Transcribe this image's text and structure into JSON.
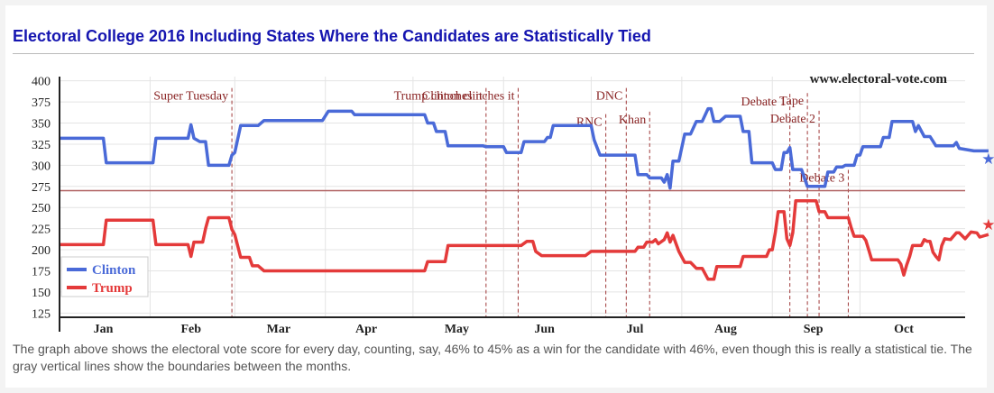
{
  "title": "Electoral College 2016 Including States Where the Candidates are Statistically Tied",
  "caption": "The graph above shows the electoral vote score for every day, counting, say, 46% to 45% as a win for the candidate with 46%, even though this is really a statistical tie. The gray vertical lines show the boundaries between the months.",
  "chart_data": {
    "type": "line",
    "watermark": "www.electoral-vote.com",
    "ylim": [
      120,
      405
    ],
    "yticks": [
      125,
      150,
      175,
      200,
      225,
      250,
      275,
      300,
      325,
      350,
      375,
      400
    ],
    "threshold": 270,
    "xlim": [
      0,
      310
    ],
    "months": [
      {
        "label": "Jan",
        "start": 0,
        "center": 15
      },
      {
        "label": "Feb",
        "start": 31,
        "center": 45
      },
      {
        "label": "Mar",
        "start": 60,
        "center": 75
      },
      {
        "label": "Apr",
        "start": 91,
        "center": 105
      },
      {
        "label": "May",
        "start": 121,
        "center": 136
      },
      {
        "label": "Jun",
        "start": 152,
        "center": 166
      },
      {
        "label": "Jul",
        "start": 182,
        "center": 197
      },
      {
        "label": "Aug",
        "start": 213,
        "center": 228
      },
      {
        "label": "Sep",
        "start": 244,
        "center": 258
      },
      {
        "label": "Oct",
        "start": 274,
        "center": 289
      }
    ],
    "legend": {
      "position": "bottom-left",
      "entries": [
        {
          "name": "Clinton",
          "color": "#4a6ad8"
        },
        {
          "name": "Trump",
          "color": "#e43a3a"
        }
      ]
    },
    "series": [
      {
        "name": "Clinton",
        "color": "#4a6ad8",
        "points": [
          [
            0,
            332
          ],
          [
            15,
            332
          ],
          [
            16,
            303
          ],
          [
            32,
            303
          ],
          [
            33,
            332
          ],
          [
            44,
            332
          ],
          [
            45,
            348
          ],
          [
            46,
            332
          ],
          [
            48,
            328
          ],
          [
            50,
            328
          ],
          [
            51,
            300
          ],
          [
            58,
            300
          ],
          [
            59,
            312
          ],
          [
            60,
            315
          ],
          [
            62,
            347
          ],
          [
            68,
            347
          ],
          [
            70,
            353
          ],
          [
            90,
            353
          ],
          [
            92,
            364
          ],
          [
            100,
            364
          ],
          [
            101,
            360
          ],
          [
            125,
            360
          ],
          [
            126,
            350
          ],
          [
            128,
            350
          ],
          [
            129,
            340
          ],
          [
            132,
            340
          ],
          [
            133,
            323
          ],
          [
            145,
            323
          ],
          [
            146,
            322
          ],
          [
            152,
            322
          ],
          [
            153,
            315
          ],
          [
            158,
            315
          ],
          [
            159,
            328
          ],
          [
            166,
            328
          ],
          [
            167,
            333
          ],
          [
            168,
            333
          ],
          [
            169,
            347
          ],
          [
            182,
            347
          ],
          [
            183,
            330
          ],
          [
            185,
            312
          ],
          [
            197,
            312
          ],
          [
            198,
            289
          ],
          [
            201,
            289
          ],
          [
            202,
            285
          ],
          [
            206,
            285
          ],
          [
            207,
            280
          ],
          [
            208,
            289
          ],
          [
            209,
            273
          ],
          [
            210,
            305
          ],
          [
            212,
            305
          ],
          [
            214,
            337
          ],
          [
            216,
            337
          ],
          [
            218,
            352
          ],
          [
            220,
            352
          ],
          [
            222,
            367
          ],
          [
            223,
            367
          ],
          [
            224,
            352
          ],
          [
            226,
            352
          ],
          [
            228,
            358
          ],
          [
            233,
            358
          ],
          [
            234,
            340
          ],
          [
            236,
            340
          ],
          [
            237,
            303
          ],
          [
            243,
            303
          ],
          [
            244,
            303
          ],
          [
            245,
            295
          ],
          [
            247,
            295
          ],
          [
            248,
            315
          ],
          [
            249,
            315
          ],
          [
            250,
            321
          ],
          [
            251,
            295
          ],
          [
            254,
            295
          ],
          [
            256,
            275
          ],
          [
            262,
            275
          ],
          [
            263,
            292
          ],
          [
            265,
            292
          ],
          [
            266,
            298
          ],
          [
            268,
            298
          ],
          [
            269,
            300
          ],
          [
            272,
            300
          ],
          [
            273,
            312
          ],
          [
            274,
            312
          ],
          [
            275,
            322
          ],
          [
            281,
            322
          ],
          [
            282,
            333
          ],
          [
            284,
            333
          ],
          [
            285,
            352
          ],
          [
            292,
            352
          ],
          [
            293,
            340
          ],
          [
            294,
            347
          ],
          [
            296,
            334
          ],
          [
            298,
            334
          ],
          [
            300,
            323
          ],
          [
            306,
            323
          ],
          [
            307,
            327
          ],
          [
            308,
            320
          ],
          [
            313,
            317
          ],
          [
            318,
            317
          ]
        ],
        "marker": [
          318,
          308
        ]
      },
      {
        "name": "Trump",
        "color": "#e43a3a",
        "points": [
          [
            0,
            206
          ],
          [
            15,
            206
          ],
          [
            16,
            235
          ],
          [
            32,
            235
          ],
          [
            33,
            206
          ],
          [
            44,
            206
          ],
          [
            45,
            192
          ],
          [
            46,
            209
          ],
          [
            49,
            209
          ],
          [
            50,
            225
          ],
          [
            51,
            238
          ],
          [
            58,
            238
          ],
          [
            59,
            224
          ],
          [
            60,
            218
          ],
          [
            62,
            191
          ],
          [
            65,
            191
          ],
          [
            66,
            181
          ],
          [
            68,
            181
          ],
          [
            70,
            175
          ],
          [
            125,
            175
          ],
          [
            126,
            186
          ],
          [
            132,
            186
          ],
          [
            133,
            205
          ],
          [
            150,
            205
          ],
          [
            155,
            205
          ],
          [
            158,
            205
          ],
          [
            160,
            210
          ],
          [
            162,
            210
          ],
          [
            163,
            198
          ],
          [
            165,
            193
          ],
          [
            166,
            193
          ],
          [
            180,
            193
          ],
          [
            182,
            198
          ],
          [
            197,
            198
          ],
          [
            198,
            203
          ],
          [
            200,
            203
          ],
          [
            201,
            209
          ],
          [
            203,
            209
          ],
          [
            204,
            212
          ],
          [
            205,
            207
          ],
          [
            207,
            212
          ],
          [
            208,
            220
          ],
          [
            209,
            209
          ],
          [
            210,
            217
          ],
          [
            212,
            198
          ],
          [
            214,
            185
          ],
          [
            216,
            185
          ],
          [
            218,
            178
          ],
          [
            220,
            178
          ],
          [
            222,
            165
          ],
          [
            224,
            165
          ],
          [
            225,
            180
          ],
          [
            232,
            180
          ],
          [
            233,
            180
          ],
          [
            234,
            192
          ],
          [
            236,
            192
          ],
          [
            242,
            192
          ],
          [
            243,
            200
          ],
          [
            244,
            200
          ],
          [
            245,
            220
          ],
          [
            246,
            245
          ],
          [
            248,
            245
          ],
          [
            249,
            213
          ],
          [
            250,
            205
          ],
          [
            251,
            220
          ],
          [
            252,
            258
          ],
          [
            258,
            258
          ],
          [
            259,
            258
          ],
          [
            260,
            245
          ],
          [
            262,
            245
          ],
          [
            263,
            238
          ],
          [
            270,
            238
          ],
          [
            271,
            226
          ],
          [
            272,
            216
          ],
          [
            275,
            216
          ],
          [
            276,
            211
          ],
          [
            277,
            200
          ],
          [
            278,
            188
          ],
          [
            287,
            188
          ],
          [
            288,
            183
          ],
          [
            289,
            170
          ],
          [
            290,
            182
          ],
          [
            291,
            192
          ],
          [
            292,
            205
          ],
          [
            295,
            205
          ],
          [
            296,
            212
          ],
          [
            297,
            210
          ],
          [
            298,
            210
          ],
          [
            299,
            197
          ],
          [
            300,
            192
          ],
          [
            301,
            188
          ],
          [
            302,
            205
          ],
          [
            303,
            213
          ],
          [
            305,
            212
          ],
          [
            307,
            220
          ],
          [
            308,
            220
          ],
          [
            310,
            213
          ],
          [
            312,
            221
          ],
          [
            314,
            220
          ],
          [
            315,
            215
          ],
          [
            318,
            218
          ]
        ],
        "marker": [
          318,
          230
        ]
      }
    ],
    "events": [
      {
        "label": "Super Tuesday",
        "x": 59,
        "y": 383
      },
      {
        "label": "Trump clinches it",
        "x": 146,
        "y": 383
      },
      {
        "label": "Clinton clinches it",
        "x": 157,
        "y": 383
      },
      {
        "label": "RNC",
        "x": 187,
        "y": 352
      },
      {
        "label": "DNC",
        "x": 194,
        "y": 383
      },
      {
        "label": "Khan",
        "x": 202,
        "y": 355
      },
      {
        "label": "Debate 1",
        "x": 250,
        "y": 376
      },
      {
        "label": "Tape",
        "x": 256,
        "y": 377
      },
      {
        "label": "Debate 2",
        "x": 260,
        "y": 356
      },
      {
        "label": "Debate 3",
        "x": 270,
        "y": 286
      }
    ]
  }
}
